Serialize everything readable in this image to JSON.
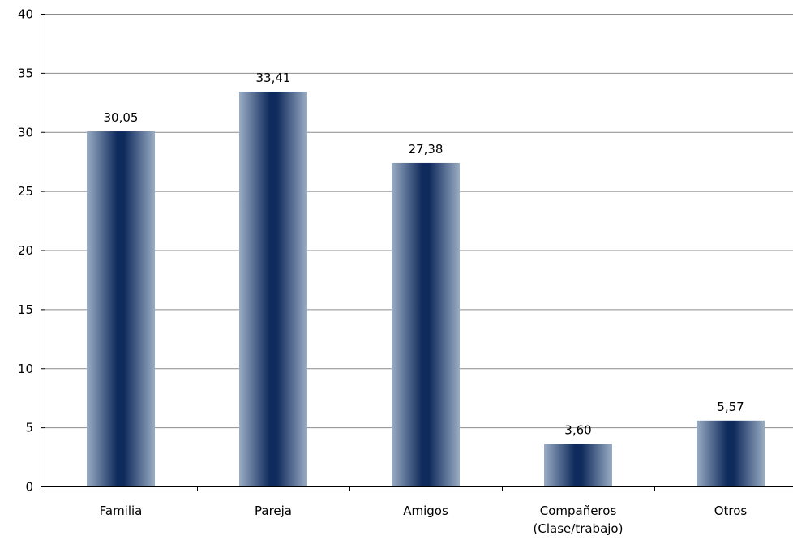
{
  "chart_data": {
    "type": "bar",
    "title": "",
    "xlabel": "",
    "ylabel": "",
    "categories": [
      [
        "Familia"
      ],
      [
        "Pareja"
      ],
      [
        "Amigos"
      ],
      [
        "Compañeros",
        "(Clase/trabajo)"
      ],
      [
        "Otros"
      ]
    ],
    "values": [
      30.05,
      33.41,
      27.38,
      3.6,
      5.57
    ],
    "data_labels": [
      "30,05",
      "33,41",
      "27,38",
      "3,60",
      "5,57"
    ],
    "ylim": [
      0,
      40
    ],
    "yticks": [
      0,
      5,
      10,
      15,
      20,
      25,
      30,
      35,
      40
    ],
    "grid": true,
    "legend": "none",
    "colors": {
      "bar_edge": "#8ea3bd",
      "bar_center": "#0f2a5c",
      "bar_shadow": "#000000",
      "grid": "#8c8c8c"
    }
  }
}
